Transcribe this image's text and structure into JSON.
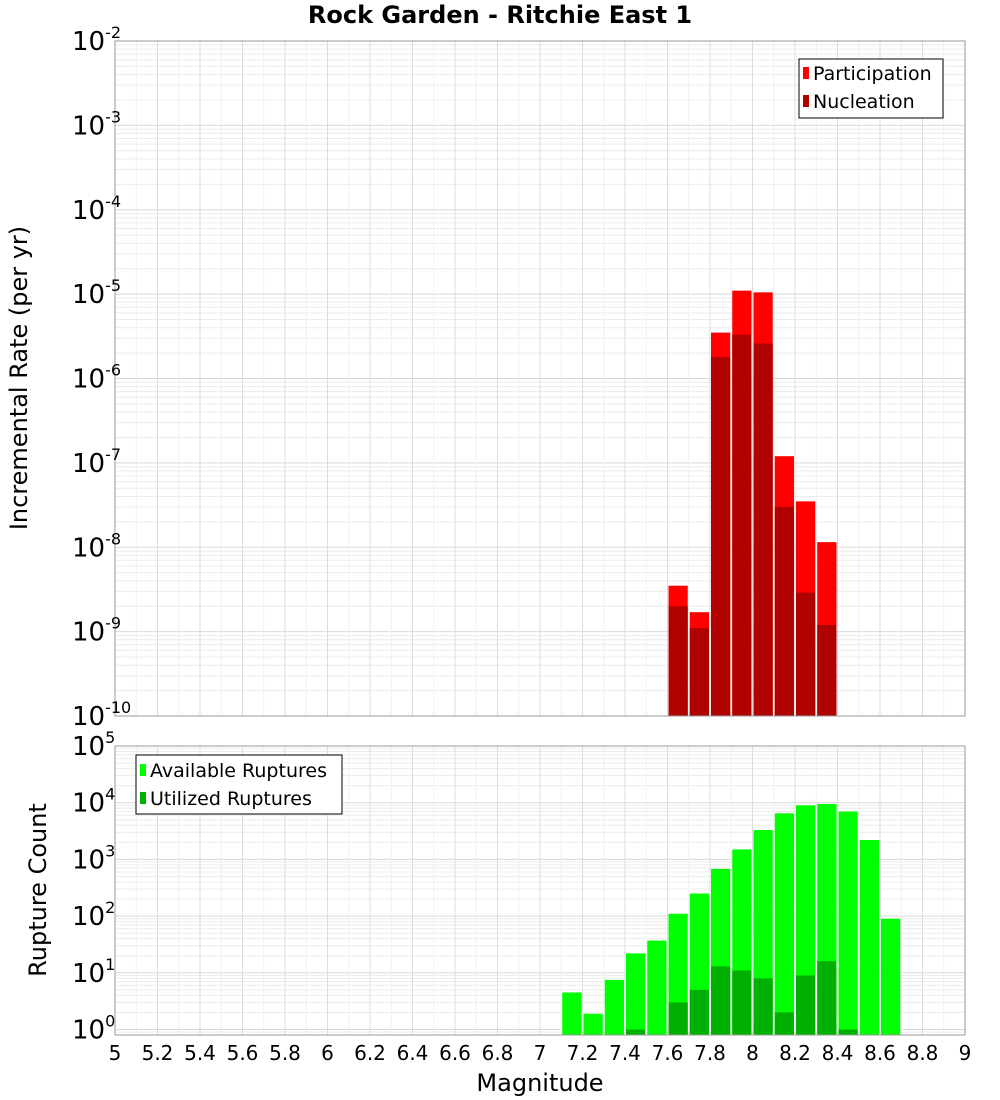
{
  "chart_data": [
    {
      "type": "bar",
      "title": "Rock Garden - Ritchie East 1",
      "ylabel": "Incremental Rate (per yr)",
      "xlabel": "",
      "x_scale": "linear",
      "y_scale": "log",
      "xlim": [
        5,
        9
      ],
      "ylim": [
        1e-10,
        0.01
      ],
      "y_ticks": [
        "10^-10",
        "10^-9",
        "10^-8",
        "10^-7",
        "10^-6",
        "10^-5",
        "10^-4",
        "10^-3",
        "10^-2"
      ],
      "grid": true,
      "legend_position": "top-right",
      "bin_width": 0.1,
      "series": [
        {
          "name": "Participation",
          "color": "#ff0000",
          "x": [
            7.65,
            7.75,
            7.85,
            7.95,
            8.05,
            8.15,
            8.25,
            8.35
          ],
          "values": [
            3.5e-09,
            1.7e-09,
            3.5e-06,
            1.1e-05,
            1.05e-05,
            1.2e-07,
            3.5e-08,
            1.15e-08
          ]
        },
        {
          "name": "Nucleation",
          "color": "#b00000",
          "x": [
            7.65,
            7.75,
            7.85,
            7.95,
            8.05,
            8.15,
            8.25,
            8.35
          ],
          "values": [
            2e-09,
            1.1e-09,
            1.8e-06,
            3.3e-06,
            2.6e-06,
            3e-08,
            2.9e-09,
            1.2e-09
          ]
        }
      ]
    },
    {
      "type": "bar",
      "title": "",
      "ylabel": "Rupture Count",
      "xlabel": "Magnitude",
      "x_scale": "linear",
      "y_scale": "log",
      "xlim": [
        5,
        9
      ],
      "ylim": [
        0.8,
        100000
      ],
      "x_ticks": [
        "5",
        "5.2",
        "5.4",
        "5.6",
        "5.8",
        "6",
        "6.2",
        "6.4",
        "6.6",
        "6.8",
        "7",
        "7.2",
        "7.4",
        "7.6",
        "7.8",
        "8",
        "8.2",
        "8.4",
        "8.6",
        "8.8",
        "9"
      ],
      "y_ticks": [
        "10^0",
        "10^1",
        "10^2",
        "10^3",
        "10^4",
        "10^5"
      ],
      "grid": true,
      "legend_position": "top-left",
      "bin_width": 0.1,
      "series": [
        {
          "name": "Available Ruptures",
          "color": "#00ff00",
          "x": [
            7.15,
            7.25,
            7.35,
            7.45,
            7.55,
            7.65,
            7.75,
            7.85,
            7.95,
            8.05,
            8.15,
            8.25,
            8.35,
            8.45,
            8.55,
            8.65
          ],
          "values": [
            4.5,
            1.9,
            7.5,
            22,
            37,
            110,
            250,
            680,
            1500,
            3300,
            6500,
            9000,
            9500,
            7000,
            2200,
            90
          ]
        },
        {
          "name": "Utilized Ruptures",
          "color": "#00b000",
          "x": [
            7.45,
            7.65,
            7.75,
            7.85,
            7.95,
            8.05,
            8.15,
            8.25,
            8.35,
            8.45
          ],
          "values": [
            1,
            3,
            5,
            13,
            11,
            8,
            2,
            9,
            16,
            1
          ]
        }
      ]
    }
  ]
}
